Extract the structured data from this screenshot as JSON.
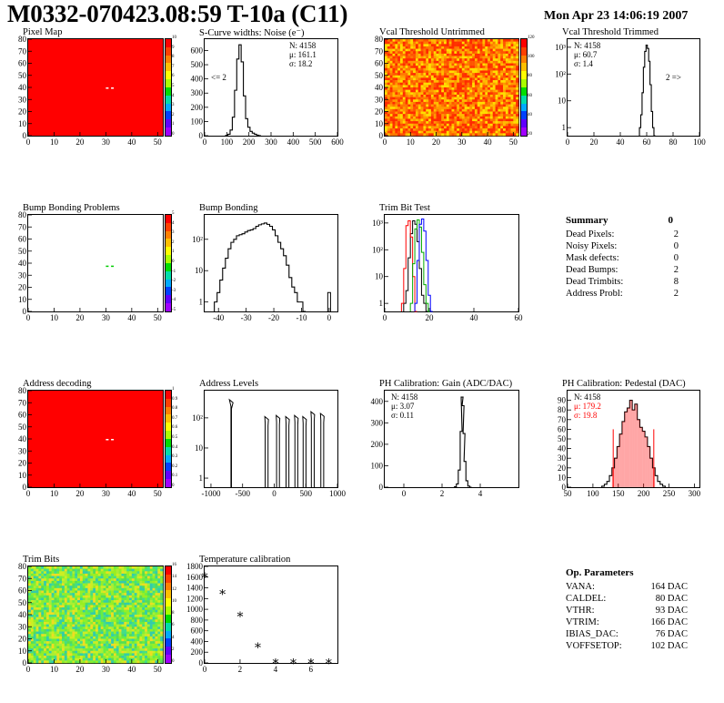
{
  "header": {
    "title": "M0332-070423.08:59 T-10a (C11)",
    "date": "Mon Apr 23 14:06:19 2007"
  },
  "colors": {
    "map_red": "#ff0000",
    "histogram_line": "#000000",
    "trimbit_series": [
      "#000000",
      "#ff0000",
      "#00aa00",
      "#0000ff"
    ],
    "pedestal_fill": "#ff0000"
  },
  "summary": {
    "title": "Summary",
    "total": "0",
    "rows": [
      {
        "label": "Dead Pixels:",
        "value": "2"
      },
      {
        "label": "Noisy Pixels:",
        "value": "0"
      },
      {
        "label": "Mask defects:",
        "value": "0"
      },
      {
        "label": "Dead Bumps:",
        "value": "2"
      },
      {
        "label": "Dead Trimbits:",
        "value": "8"
      },
      {
        "label": "Address Probl:",
        "value": "2"
      }
    ]
  },
  "op_params": {
    "title": "Op. Parameters",
    "rows": [
      {
        "label": "VANA:",
        "value": "164 DAC"
      },
      {
        "label": "CALDEL:",
        "value": "80 DAC"
      },
      {
        "label": "VTHR:",
        "value": "93 DAC"
      },
      {
        "label": "VTRIM:",
        "value": "166 DAC"
      },
      {
        "label": "IBIAS_DAC:",
        "value": "76 DAC"
      },
      {
        "label": "VOFFSETOP:",
        "value": "102 DAC"
      }
    ]
  },
  "chart_data": [
    {
      "id": "pixel-map",
      "type": "heatmap",
      "title": "Pixel Map",
      "xlim": [
        0,
        52
      ],
      "ylim": [
        0,
        80
      ],
      "xticks": [
        0,
        10,
        20,
        30,
        40,
        50
      ],
      "yticks": [
        0,
        10,
        20,
        30,
        40,
        50,
        60,
        70,
        80
      ],
      "fill": "uniform red (all pixels responding)",
      "colorbar": [
        "10",
        "9",
        "8",
        "7",
        "6",
        "5",
        "4",
        "3",
        "2",
        "1",
        "0"
      ],
      "dead_pixels": [
        [
          30,
          40
        ],
        [
          32,
          40
        ]
      ]
    },
    {
      "id": "scurve-noise",
      "type": "line",
      "title": "S-Curve widths: Noise (e⁻)",
      "xlim": [
        0,
        600
      ],
      "ylim": [
        0,
        680
      ],
      "xticks": [
        0,
        100,
        200,
        300,
        400,
        500,
        600
      ],
      "yticks": [
        0,
        100,
        200,
        300,
        400,
        500,
        600
      ],
      "stats": {
        "N": "4158",
        "mean": "161.1",
        "sigma": "18.2"
      },
      "annotation": "<= 2",
      "histogram": {
        "x": [
          100,
          110,
          120,
          130,
          140,
          150,
          160,
          170,
          180,
          190,
          200,
          210,
          220,
          230,
          240,
          250
        ],
        "y": [
          2,
          10,
          40,
          130,
          320,
          540,
          640,
          520,
          280,
          120,
          60,
          30,
          18,
          10,
          4,
          0
        ]
      }
    },
    {
      "id": "vcal-untrimmed",
      "type": "heatmap",
      "title": "Vcal Threshold Untrimmed",
      "xlim": [
        0,
        52
      ],
      "ylim": [
        0,
        80
      ],
      "xticks": [
        0,
        10,
        20,
        30,
        40,
        50
      ],
      "yticks": [
        0,
        10,
        20,
        30,
        40,
        50,
        60,
        70,
        80
      ],
      "colorbar": [
        "120",
        "100",
        "80",
        "60",
        "40",
        "20"
      ]
    },
    {
      "id": "vcal-trimmed",
      "type": "line",
      "title": "Vcal Threshold Trimmed",
      "log_y": true,
      "xlim": [
        0,
        100
      ],
      "ylim": [
        0.5,
        2000
      ],
      "xticks": [
        0,
        20,
        40,
        60,
        80,
        100
      ],
      "yticks": [
        "1",
        "10",
        "10²",
        "10³"
      ],
      "stats": {
        "N": "4158",
        "mean": "60.7",
        "sigma": "1.4"
      },
      "annotation": "2 =>",
      "histogram": {
        "x": [
          55,
          56,
          57,
          58,
          59,
          60,
          61,
          62,
          63,
          64,
          65,
          66
        ],
        "y": [
          1,
          3,
          20,
          180,
          700,
          1200,
          900,
          300,
          40,
          4,
          1,
          0
        ]
      }
    },
    {
      "id": "bump-problems",
      "type": "heatmap",
      "title": "Bump Bonding Problems",
      "xlim": [
        0,
        52
      ],
      "ylim": [
        0,
        80
      ],
      "xticks": [
        0,
        10,
        20,
        30,
        40,
        50
      ],
      "yticks": [
        0,
        10,
        20,
        30,
        40,
        50,
        60,
        70,
        80
      ],
      "colorbar": [
        "5",
        "4",
        "3",
        "2",
        "1",
        "0",
        "-1",
        "-2",
        "-3",
        "-4",
        "-5"
      ],
      "dead_bumps": [
        [
          30,
          38
        ],
        [
          32,
          38
        ]
      ]
    },
    {
      "id": "bump-bonding",
      "type": "line",
      "title": "Bump Bonding",
      "log_y": true,
      "xlim": [
        -45,
        3
      ],
      "ylim": [
        0.5,
        600
      ],
      "xticks": [
        -40,
        -30,
        -20,
        -10,
        0
      ],
      "yticks": [
        "1",
        "10",
        "10²"
      ],
      "histogram": {
        "x": [
          -41,
          -40,
          -39,
          -38,
          -37,
          -36,
          -35,
          -34,
          -33,
          -32,
          -31,
          -30,
          -29,
          -28,
          -27,
          -26,
          -25,
          -24,
          -23,
          -22,
          -21,
          -20,
          -19,
          -18,
          -17,
          -16,
          -15,
          -14,
          -13,
          -12,
          -11,
          -10,
          -9
        ],
        "y": [
          1,
          2,
          5,
          12,
          25,
          50,
          80,
          100,
          130,
          140,
          150,
          170,
          190,
          200,
          220,
          260,
          290,
          310,
          330,
          300,
          260,
          200,
          130,
          80,
          50,
          30,
          15,
          6,
          3,
          2,
          1,
          1,
          0
        ]
      },
      "outlier": {
        "x": 0,
        "y": 2
      }
    },
    {
      "id": "trim-bit-test",
      "type": "line",
      "title": "Trim Bit Test",
      "log_y": true,
      "xlim": [
        0,
        60
      ],
      "ylim": [
        0.5,
        2000
      ],
      "xticks": [
        0,
        20,
        40,
        60
      ],
      "yticks": [
        "1",
        "10",
        "10²",
        "10³"
      ],
      "series": [
        {
          "color": "#000000",
          "x": [
            9,
            10,
            11,
            12,
            13,
            14,
            15,
            16,
            17,
            18,
            19
          ],
          "y": [
            1,
            3,
            50,
            400,
            1200,
            900,
            200,
            20,
            2,
            1,
            0
          ]
        },
        {
          "color": "#ff0000",
          "x": [
            8,
            9,
            10,
            11,
            12,
            13,
            14
          ],
          "y": [
            1,
            20,
            800,
            1200,
            300,
            10,
            0
          ]
        },
        {
          "color": "#00aa00",
          "x": [
            12,
            13,
            14,
            15,
            16,
            17,
            18,
            19,
            20
          ],
          "y": [
            1,
            30,
            600,
            1300,
            700,
            80,
            5,
            1,
            0
          ]
        },
        {
          "color": "#0000ff",
          "x": [
            14,
            15,
            16,
            17,
            18,
            19,
            20,
            21
          ],
          "y": [
            1,
            40,
            900,
            1400,
            500,
            40,
            2,
            0
          ]
        }
      ]
    },
    {
      "id": "address-decoding",
      "type": "heatmap",
      "title": "Address decoding",
      "xlim": [
        0,
        52
      ],
      "ylim": [
        0,
        80
      ],
      "xticks": [
        0,
        10,
        20,
        30,
        40,
        50
      ],
      "yticks": [
        0,
        10,
        20,
        30,
        40,
        50,
        60,
        70,
        80
      ],
      "colorbar": [
        "1",
        "0.9",
        "0.8",
        "0.7",
        "0.6",
        "0.5",
        "0.4",
        "0.3",
        "0.2",
        "0.1",
        "0"
      ],
      "problems": [
        [
          30,
          40
        ],
        [
          32,
          40
        ]
      ]
    },
    {
      "id": "address-levels",
      "type": "line",
      "title": "Address Levels",
      "log_y": true,
      "xlim": [
        -1100,
        1000
      ],
      "ylim": [
        0.5,
        800
      ],
      "xticks": [
        -1000,
        -500,
        0,
        500,
        1000
      ],
      "yticks": [
        "1",
        "10",
        "10²"
      ],
      "peaks": [
        {
          "center": -680,
          "height": 400
        },
        {
          "center": -120,
          "height": 110
        },
        {
          "center": 60,
          "height": 120
        },
        {
          "center": 210,
          "height": 110
        },
        {
          "center": 350,
          "height": 120
        },
        {
          "center": 480,
          "height": 110
        },
        {
          "center": 610,
          "height": 160
        },
        {
          "center": 760,
          "height": 140
        }
      ]
    },
    {
      "id": "ph-gain",
      "type": "line",
      "title": "PH Calibration: Gain (ADC/DAC)",
      "xlim": [
        -1,
        6
      ],
      "ylim": [
        0,
        450
      ],
      "xticks": [
        0,
        2,
        4
      ],
      "yticks": [
        0,
        100,
        200,
        300,
        400
      ],
      "stats": {
        "N": "4158",
        "mean": "3.07",
        "sigma": "0.11"
      },
      "histogram": {
        "x": [
          2.7,
          2.8,
          2.9,
          3.0,
          3.05,
          3.1,
          3.15,
          3.2,
          3.3,
          3.4,
          3.5
        ],
        "y": [
          2,
          15,
          80,
          260,
          420,
          380,
          250,
          120,
          30,
          5,
          0
        ]
      }
    },
    {
      "id": "ph-pedestal",
      "type": "line",
      "title": "PH Calibration: Pedestal (DAC)",
      "xlim": [
        50,
        310
      ],
      "ylim": [
        0,
        100
      ],
      "xticks": [
        50,
        100,
        150,
        200,
        250,
        300
      ],
      "yticks": [
        0,
        10,
        20,
        30,
        40,
        50,
        60,
        70,
        80,
        90
      ],
      "stats": {
        "N": "4158",
        "mean": "179.2",
        "sigma": "19.8"
      },
      "fit_range": [
        140,
        220
      ],
      "histogram": {
        "x": [
          120,
          125,
          130,
          135,
          140,
          145,
          150,
          155,
          160,
          165,
          170,
          175,
          180,
          185,
          190,
          195,
          200,
          205,
          210,
          215,
          220,
          225,
          230,
          235,
          240
        ],
        "y": [
          1,
          3,
          6,
          12,
          20,
          30,
          42,
          55,
          68,
          78,
          82,
          90,
          80,
          86,
          70,
          62,
          58,
          52,
          42,
          30,
          20,
          12,
          6,
          3,
          1
        ]
      }
    },
    {
      "id": "trim-bits",
      "type": "heatmap",
      "title": "Trim Bits",
      "xlim": [
        0,
        52
      ],
      "ylim": [
        0,
        80
      ],
      "xticks": [
        0,
        10,
        20,
        30,
        40,
        50
      ],
      "yticks": [
        0,
        10,
        20,
        30,
        40,
        50,
        60,
        70,
        80
      ],
      "colorbar": [
        "16",
        "14",
        "12",
        "10",
        "8",
        "6",
        "4",
        "2",
        "0"
      ]
    },
    {
      "id": "temperature-calibration",
      "type": "scatter",
      "title": "Temperature calibration",
      "xlim": [
        0,
        7.5
      ],
      "ylim": [
        0,
        1800
      ],
      "xticks": [
        0,
        2,
        4,
        6
      ],
      "yticks": [
        0,
        200,
        400,
        600,
        800,
        1000,
        1200,
        1400,
        1600,
        1800
      ],
      "x": [
        0,
        1,
        2,
        3,
        4,
        5,
        6,
        7
      ],
      "y": [
        1650,
        1330,
        920,
        340,
        40,
        40,
        40,
        40
      ]
    }
  ]
}
